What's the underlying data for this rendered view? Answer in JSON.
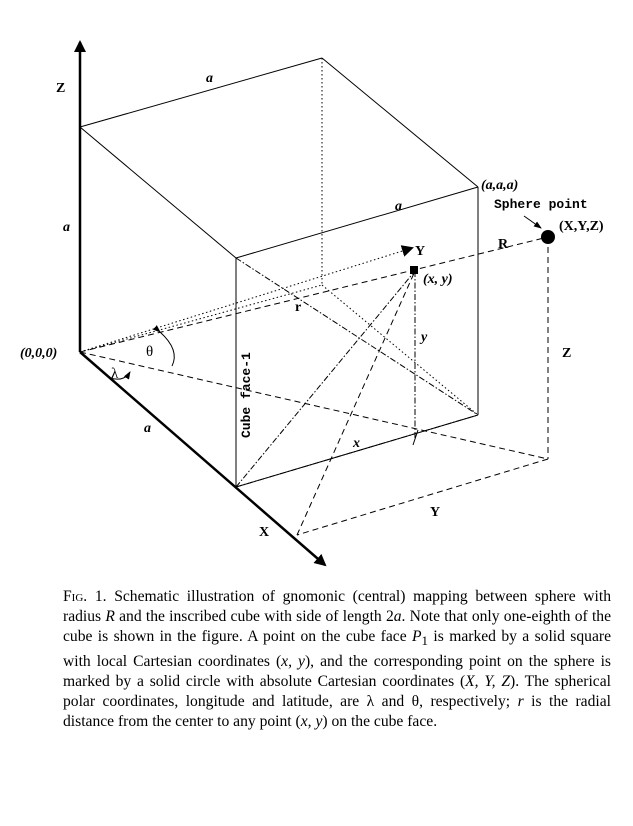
{
  "figure": {
    "axes": {
      "z": "Z",
      "x": "X"
    },
    "edges": {
      "a_top": "a",
      "a_left": "a",
      "a_bottom": "a",
      "a_top_front": "a"
    },
    "points": {
      "origin": "(0,0,0)",
      "corner": "(a,a,a)",
      "sphere_label": "Sphere point",
      "sphere_coords": "(X,Y,Z)",
      "cube_point": "(x, y)"
    },
    "segments": {
      "R": "R",
      "r": "r",
      "y_local": "y",
      "x_local": "x",
      "Z_drop": "Z",
      "Y_floor": "Y",
      "Y_axis_face": "Y"
    },
    "angles": {
      "theta": "θ",
      "lambda": "λ"
    },
    "face_label": "Cube face-1"
  },
  "caption": {
    "prefix": "Fig.",
    "number": "1.",
    "segments": [
      {
        "t": " Schematic illustration of gnomonic (central) mapping between sphere with radius ",
        "s": "n"
      },
      {
        "t": "R",
        "s": "i"
      },
      {
        "t": " and the inscribed cube with side of length 2",
        "s": "n"
      },
      {
        "t": "a",
        "s": "i"
      },
      {
        "t": ". Note that only one-eighth of the cube is shown in the figure. A point on the cube face ",
        "s": "n"
      },
      {
        "t": "P",
        "s": "i"
      },
      {
        "t": "1",
        "s": "sub"
      },
      {
        "t": " is marked by a solid square with local Cartesian coordinates (",
        "s": "n"
      },
      {
        "t": "x, y",
        "s": "i"
      },
      {
        "t": "), and the corresponding point on the sphere is marked by a solid circle with absolute Cartesian coordinates (",
        "s": "n"
      },
      {
        "t": "X, Y, Z",
        "s": "i"
      },
      {
        "t": "). The spherical polar coordinates, longitude and latitude, are λ and θ, respectively; ",
        "s": "n"
      },
      {
        "t": "r",
        "s": "i"
      },
      {
        "t": " is the radial distance from the center to any point (",
        "s": "n"
      },
      {
        "t": "x, y",
        "s": "i"
      },
      {
        "t": ") on the cube face.",
        "s": "n"
      }
    ]
  }
}
